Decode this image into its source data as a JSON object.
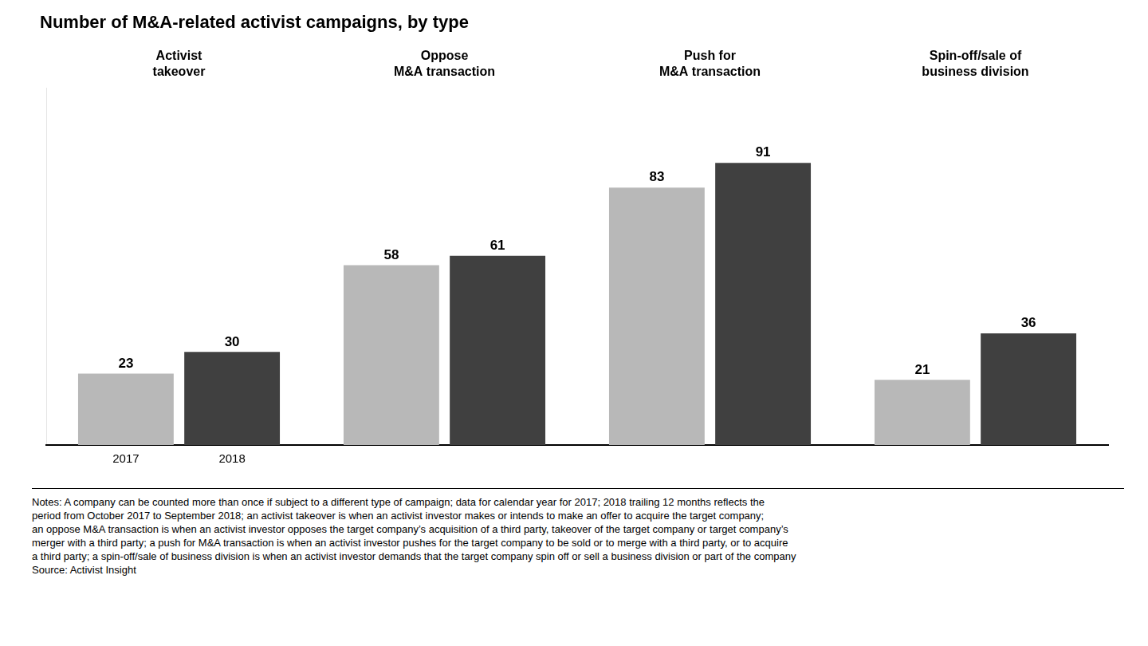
{
  "chart_data": {
    "type": "bar",
    "title": "Number of M&A-related activist campaigns, by type",
    "categories": [
      "Activist\ntakeover",
      "Oppose\nM&A transaction",
      "Push for\nM&A transaction",
      "Spin-off/sale of\nbusiness division"
    ],
    "series": [
      {
        "name": "2017",
        "color": "#b8b8b8",
        "values": [
          23,
          58,
          83,
          21
        ]
      },
      {
        "name": "2018",
        "color": "#404040",
        "values": [
          30,
          61,
          91,
          36
        ]
      }
    ],
    "ylim": [
      0,
      115
    ],
    "grid": false,
    "data_labels": true,
    "tick_labels": "x",
    "annotation": "Notes: A company can be counted more than once if subject to a different type of campaign; data for calendar year for 2017; 2018 trailing 12 months reflects the\nperiod from October 2017 to September 2018; an activist takeover is when an activist investor makes or intends to make an offer to acquire the target company;\nan oppose M&A transaction is when an activist investor opposes the target company’s acquisition of a third party, takeover of the target company or target company’s\nmerger with a third party; a push for M&A transaction is when an activist investor pushes for the target company to be sold or to merge with a third party, or to acquire\na third party; a spin-off/sale of business division is when an activist investor demands that the target company spin off or sell a business division or part of the company\nSource: Activist Insight"
  }
}
